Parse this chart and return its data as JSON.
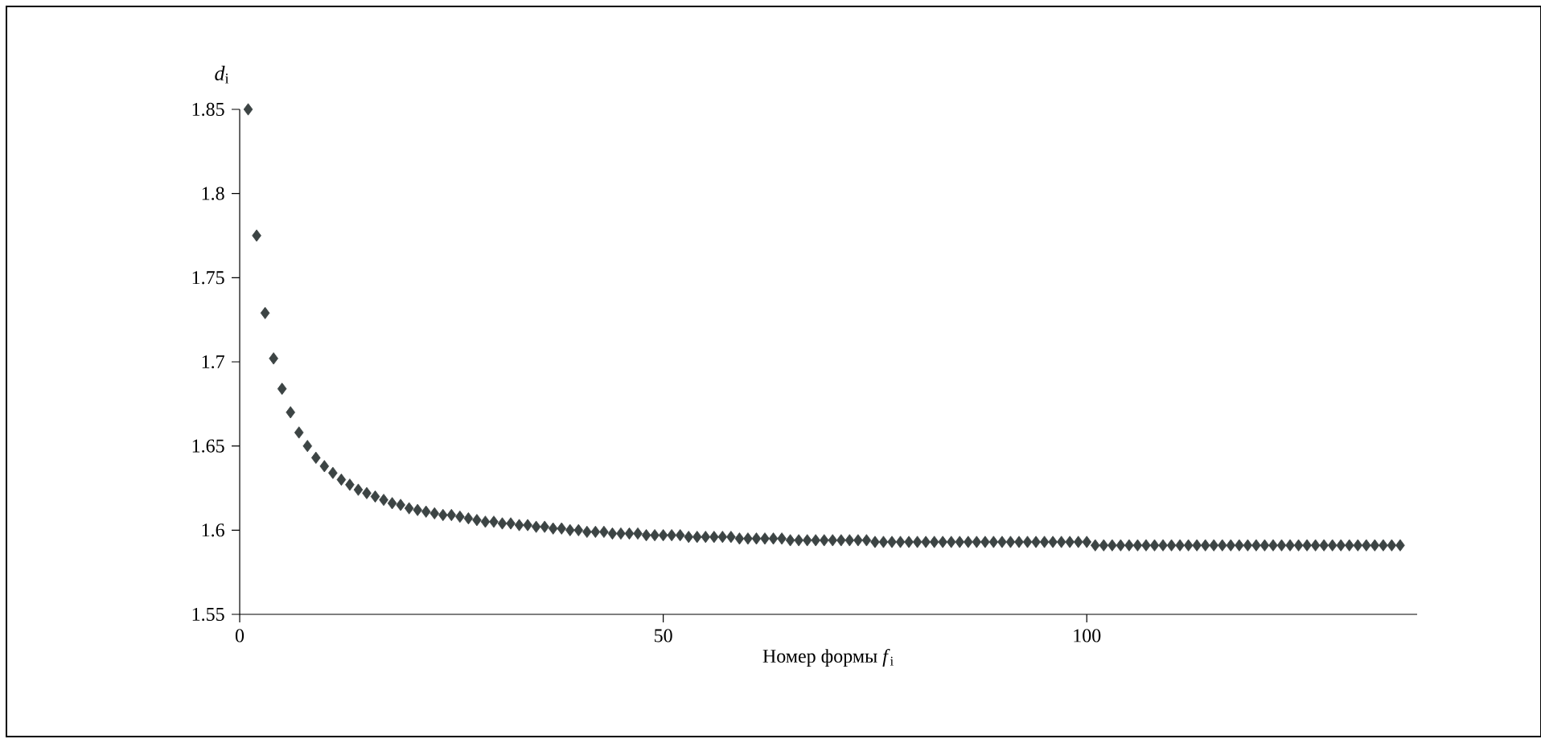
{
  "chart_data": {
    "type": "scatter",
    "xlabel": "Номер формы *f*$_{i}$",
    "ylabel": "*d*$_{i}$",
    "x": [
      1,
      2,
      3,
      4,
      5,
      6,
      7,
      8,
      9,
      10,
      11,
      12,
      13,
      14,
      15,
      16,
      17,
      18,
      19,
      20,
      21,
      22,
      23,
      24,
      25,
      26,
      27,
      28,
      29,
      30,
      31,
      32,
      33,
      34,
      35,
      36,
      37,
      38,
      39,
      40,
      41,
      42,
      43,
      44,
      45,
      46,
      47,
      48,
      49,
      50,
      51,
      52,
      53,
      54,
      55,
      56,
      57,
      58,
      59,
      60,
      61,
      62,
      63,
      64,
      65,
      66,
      67,
      68,
      69,
      70,
      71,
      72,
      73,
      74,
      75,
      76,
      77,
      78,
      79,
      80,
      81,
      82,
      83,
      84,
      85,
      86,
      87,
      88,
      89,
      90,
      91,
      92,
      93,
      94,
      95,
      96,
      97,
      98,
      99,
      100,
      101,
      102,
      103,
      104,
      105,
      106,
      107,
      108,
      109,
      110,
      111,
      112,
      113,
      114,
      115,
      116,
      117,
      118,
      119,
      120,
      121,
      122,
      123,
      124,
      125,
      126,
      127,
      128,
      129,
      130,
      131,
      132,
      133,
      134,
      135,
      136,
      137
    ],
    "values": [
      1.85,
      1.775,
      1.729,
      1.702,
      1.684,
      1.67,
      1.658,
      1.65,
      1.643,
      1.638,
      1.634,
      1.63,
      1.627,
      1.624,
      1.622,
      1.62,
      1.618,
      1.616,
      1.615,
      1.613,
      1.612,
      1.611,
      1.61,
      1.609,
      1.609,
      1.608,
      1.607,
      1.606,
      1.605,
      1.605,
      1.604,
      1.604,
      1.603,
      1.603,
      1.602,
      1.602,
      1.601,
      1.601,
      1.6,
      1.6,
      1.599,
      1.599,
      1.599,
      1.598,
      1.598,
      1.598,
      1.598,
      1.597,
      1.597,
      1.597,
      1.597,
      1.597,
      1.596,
      1.596,
      1.596,
      1.596,
      1.596,
      1.596,
      1.595,
      1.595,
      1.595,
      1.595,
      1.595,
      1.595,
      1.594,
      1.594,
      1.594,
      1.594,
      1.594,
      1.594,
      1.594,
      1.594,
      1.594,
      1.594,
      1.593,
      1.593,
      1.593,
      1.593,
      1.593,
      1.593,
      1.593,
      1.593,
      1.593,
      1.593,
      1.593,
      1.593,
      1.593,
      1.593,
      1.593,
      1.593,
      1.593,
      1.593,
      1.593,
      1.593,
      1.593,
      1.593,
      1.593,
      1.593,
      1.593,
      1.593,
      1.591,
      1.591,
      1.591,
      1.591,
      1.591,
      1.591,
      1.591,
      1.591,
      1.591,
      1.591,
      1.591,
      1.591,
      1.591,
      1.591,
      1.591,
      1.591,
      1.591,
      1.591,
      1.591,
      1.591,
      1.591,
      1.591,
      1.591,
      1.591,
      1.591,
      1.591,
      1.591,
      1.591,
      1.591,
      1.591,
      1.591,
      1.591,
      1.591,
      1.591,
      1.591,
      1.591,
      1.591
    ],
    "color": "#3c4444",
    "marker": "diamond",
    "xlim": [
      0,
      139
    ],
    "ylim": [
      1.55,
      1.85
    ],
    "xticks": [
      0,
      50,
      100
    ],
    "yticks": [
      1.55,
      1.6,
      1.65,
      1.7,
      1.75,
      1.8,
      1.85
    ]
  }
}
